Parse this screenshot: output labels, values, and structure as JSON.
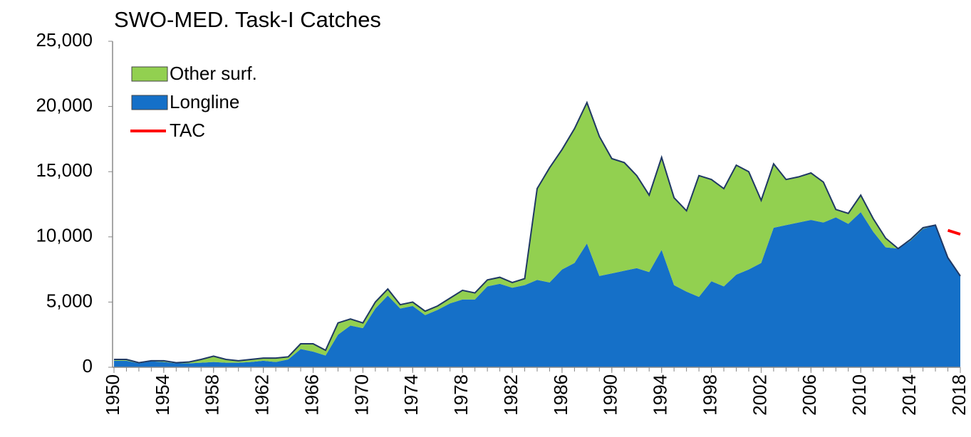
{
  "chart_data": {
    "type": "area",
    "title": "SWO-MED. Task-I Catches",
    "x": [
      1950,
      1951,
      1952,
      1953,
      1954,
      1955,
      1956,
      1957,
      1958,
      1959,
      1960,
      1961,
      1962,
      1963,
      1964,
      1965,
      1966,
      1967,
      1968,
      1969,
      1970,
      1971,
      1972,
      1973,
      1974,
      1975,
      1976,
      1977,
      1978,
      1979,
      1980,
      1981,
      1982,
      1983,
      1984,
      1985,
      1986,
      1987,
      1988,
      1989,
      1990,
      1991,
      1992,
      1993,
      1994,
      1995,
      1996,
      1997,
      1998,
      1999,
      2000,
      2001,
      2002,
      2003,
      2004,
      2005,
      2006,
      2007,
      2008,
      2009,
      2010,
      2011,
      2012,
      2013,
      2014,
      2015,
      2016,
      2017,
      2018
    ],
    "series": [
      {
        "name": "Other surf.",
        "color": "#92d050",
        "stacked": true,
        "values": [
          100,
          100,
          50,
          50,
          100,
          50,
          100,
          250,
          450,
          250,
          150,
          200,
          200,
          300,
          200,
          400,
          600,
          400,
          900,
          500,
          400,
          500,
          500,
          300,
          300,
          300,
          300,
          400,
          700,
          500,
          500,
          500,
          400,
          500,
          7000,
          8800,
          9200,
          10300,
          10800,
          10700,
          8800,
          8300,
          7100,
          5900,
          7100,
          6700,
          6200,
          9300,
          7800,
          7500,
          8400,
          7500,
          4800,
          4900,
          3500,
          3500,
          3600,
          3100,
          600,
          800,
          1300,
          1000,
          700,
          0,
          100,
          100,
          0,
          0,
          0
        ]
      },
      {
        "name": "Longline",
        "color": "#1570c8",
        "stacked": true,
        "values": [
          500,
          500,
          300,
          450,
          400,
          300,
          300,
          350,
          400,
          350,
          350,
          400,
          500,
          400,
          600,
          1400,
          1200,
          900,
          2500,
          3200,
          3000,
          4500,
          5500,
          4500,
          4700,
          4000,
          4400,
          4900,
          5200,
          5200,
          6200,
          6400,
          6100,
          6300,
          6700,
          6500,
          7500,
          8000,
          9500,
          7000,
          7200,
          7400,
          7600,
          7300,
          9000,
          6300,
          5800,
          5400,
          6600,
          6200,
          7100,
          7500,
          8000,
          10700,
          10900,
          11100,
          11300,
          11100,
          11500,
          11000,
          11900,
          10400,
          9200,
          9100,
          9700,
          10600,
          10900,
          8400,
          7000
        ]
      },
      {
        "name": "TAC",
        "color": "#ff0000",
        "type": "line",
        "values": [
          null,
          null,
          null,
          null,
          null,
          null,
          null,
          null,
          null,
          null,
          null,
          null,
          null,
          null,
          null,
          null,
          null,
          null,
          null,
          null,
          null,
          null,
          null,
          null,
          null,
          null,
          null,
          null,
          null,
          null,
          null,
          null,
          null,
          null,
          null,
          null,
          null,
          null,
          null,
          null,
          null,
          null,
          null,
          null,
          null,
          null,
          null,
          null,
          null,
          null,
          null,
          null,
          null,
          null,
          null,
          null,
          null,
          null,
          null,
          null,
          null,
          null,
          null,
          null,
          null,
          null,
          null,
          10500,
          10200
        ]
      }
    ],
    "xlim": [
      1950,
      2018
    ],
    "xticks": [
      1950,
      1954,
      1958,
      1962,
      1966,
      1970,
      1974,
      1978,
      1982,
      1986,
      1990,
      1994,
      1998,
      2002,
      2006,
      2010,
      2014,
      2018
    ],
    "ylim": [
      0,
      25000
    ],
    "yticks": [
      0,
      {
        "value": 5000,
        "label": "5,000"
      },
      {
        "value": 10000,
        "label": "10,000"
      },
      {
        "value": 15000,
        "label": "15,000"
      },
      {
        "value": 20000,
        "label": "20,000"
      },
      {
        "value": 25000,
        "label": "25,000"
      }
    ],
    "outline": "#1f3864",
    "legend": "top-left"
  }
}
